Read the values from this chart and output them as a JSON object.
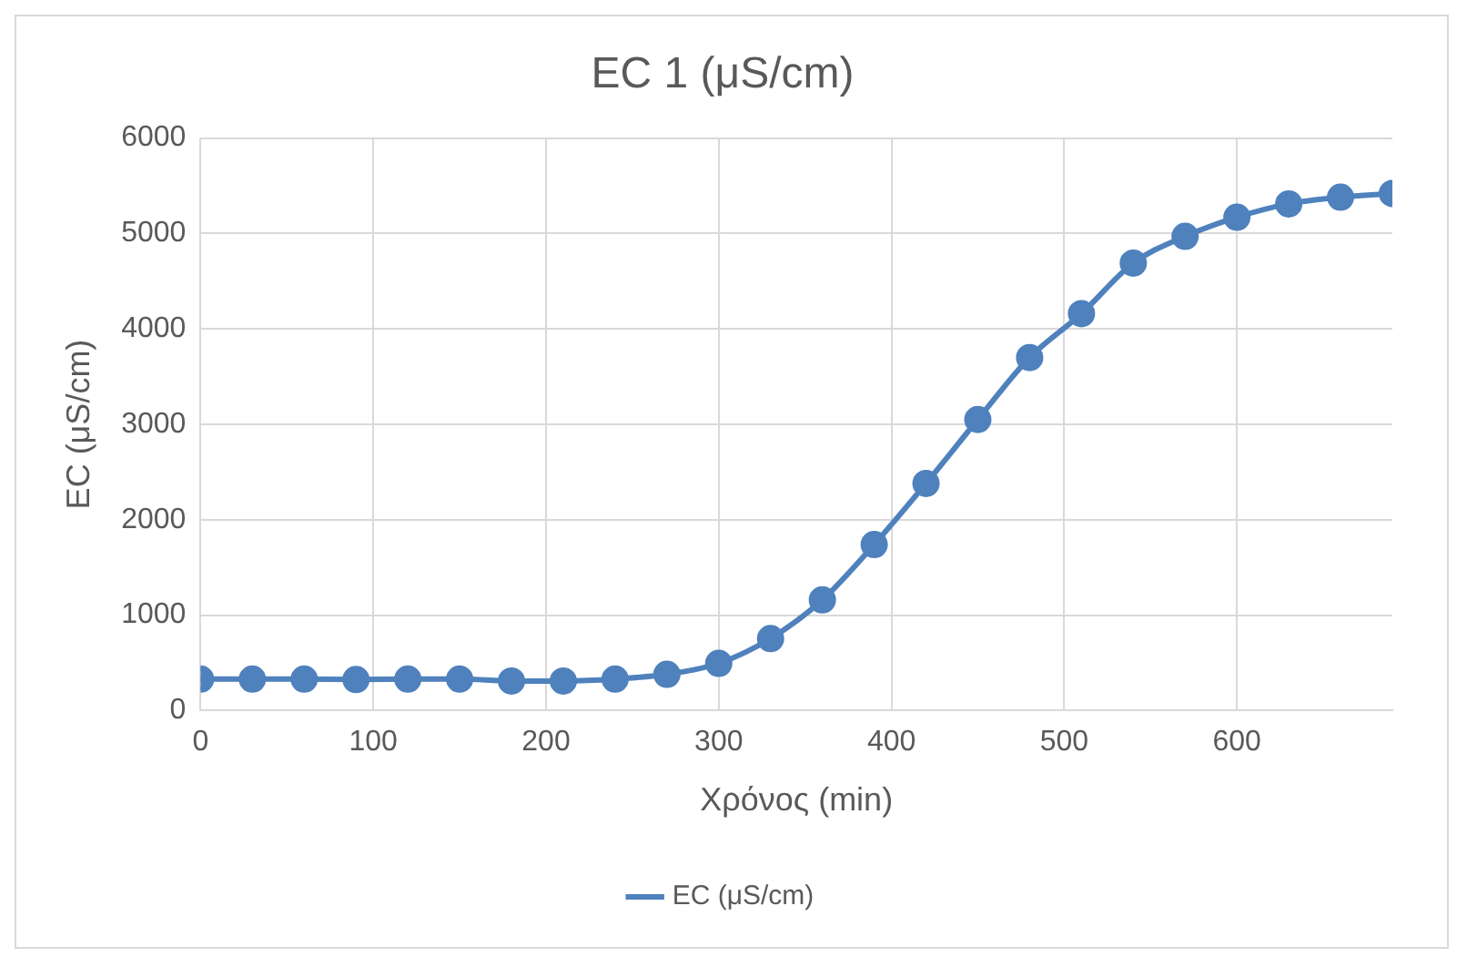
{
  "chart_data": {
    "type": "line",
    "title": "EC 1 (μS/cm)",
    "xlabel": "Χρόνος (min)",
    "ylabel": "EC (μS/cm)",
    "x": [
      0,
      30,
      60,
      90,
      120,
      150,
      180,
      210,
      240,
      270,
      300,
      330,
      360,
      390,
      420,
      450,
      480,
      510,
      540,
      570,
      600,
      630,
      660,
      690
    ],
    "series": [
      {
        "name": "EC (μS/cm)",
        "color": "#4f81bd",
        "values": [
          330,
          330,
          330,
          325,
          330,
          330,
          310,
          310,
          330,
          380,
          495,
          755,
          1160,
          1740,
          2380,
          3050,
          3700,
          4160,
          4690,
          4970,
          5170,
          5310,
          5380,
          5420
        ]
      }
    ],
    "xlim": [
      0,
      690
    ],
    "xticks": [
      0,
      100,
      200,
      300,
      400,
      500,
      600
    ],
    "ylim": [
      0,
      6000
    ],
    "yticks": [
      0,
      1000,
      2000,
      3000,
      4000,
      5000,
      6000
    ],
    "grid": true,
    "legend": "bottom",
    "marker": "circle",
    "line_style": "solid"
  }
}
